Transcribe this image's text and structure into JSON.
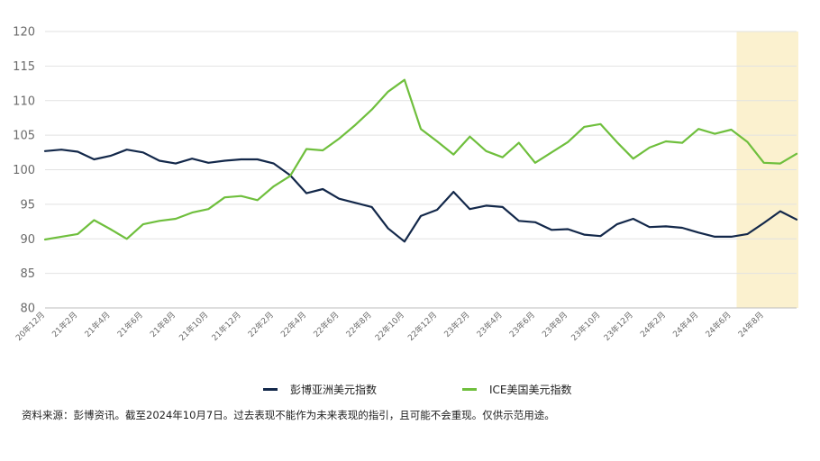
{
  "chart_data": {
    "type": "line",
    "x": [
      "2020-12",
      "2021-01",
      "2021-02",
      "2021-03",
      "2021-04",
      "2021-05",
      "2021-06",
      "2021-07",
      "2021-08",
      "2021-09",
      "2021-10",
      "2021-11",
      "2021-12",
      "2022-01",
      "2022-02",
      "2022-03",
      "2022-04",
      "2022-05",
      "2022-06",
      "2022-07",
      "2022-08",
      "2022-09",
      "2022-10",
      "2022-11",
      "2022-12",
      "2023-01",
      "2023-02",
      "2023-03",
      "2023-04",
      "2023-05",
      "2023-06",
      "2023-07",
      "2023-08",
      "2023-09",
      "2023-10",
      "2023-11",
      "2023-12",
      "2024-01",
      "2024-02",
      "2024-03",
      "2024-04",
      "2024-05",
      "2024-06",
      "2024-07",
      "2024-08",
      "2024-09",
      "2024-10"
    ],
    "tick_labels": [
      "20年12月",
      "21年2月",
      "21年4月",
      "21年6月",
      "21年8月",
      "21年10月",
      "21年12月",
      "22年2月",
      "22年4月",
      "22年6月",
      "22年8月",
      "22年10月",
      "22年12月",
      "23年2月",
      "23年4月",
      "23年6月",
      "23年8月",
      "23年10月",
      "23年12月",
      "24年2月",
      "24年4月",
      "24年6月",
      "24年8月"
    ],
    "ylim": [
      80,
      120
    ],
    "yticks": [
      80,
      85,
      90,
      95,
      100,
      105,
      110,
      115,
      120
    ],
    "grid": true,
    "legend": "bottom",
    "highlight": {
      "from": "2024-06",
      "to": "2024-10",
      "color": "#fbf1cf"
    },
    "series": [
      {
        "name": "彭博亚洲美元指数",
        "color": "#13284a",
        "values": [
          102.7,
          102.9,
          102.6,
          101.5,
          102.0,
          102.9,
          102.5,
          101.3,
          100.9,
          101.6,
          101.0,
          101.3,
          101.5,
          101.5,
          100.9,
          99.2,
          96.6,
          97.2,
          95.8,
          95.2,
          94.6,
          91.5,
          89.6,
          93.3,
          94.2,
          96.8,
          94.3,
          94.8,
          94.6,
          92.6,
          92.4,
          91.3,
          91.4,
          90.6,
          90.4,
          92.1,
          92.9,
          91.7,
          91.8,
          91.6,
          90.9,
          90.3,
          90.3,
          90.7,
          92.3,
          94.0,
          92.8
        ]
      },
      {
        "name": "ICE美国美元指数",
        "color": "#6fbf3d",
        "values": [
          89.9,
          90.3,
          90.7,
          92.7,
          91.4,
          90.0,
          92.1,
          92.6,
          92.9,
          93.8,
          94.3,
          96.0,
          96.2,
          95.6,
          97.6,
          99.1,
          103.0,
          102.8,
          104.5,
          106.5,
          108.7,
          111.3,
          113.0,
          105.9,
          104.1,
          102.2,
          104.8,
          102.7,
          101.8,
          103.9,
          101.0,
          102.5,
          104.0,
          106.2,
          106.6,
          104.0,
          101.6,
          103.2,
          104.1,
          103.9,
          105.9,
          105.2,
          105.8,
          104.0,
          101.0,
          100.9,
          102.3
        ]
      }
    ]
  },
  "source_note": "资料来源：彭博资讯。截至2024年10月7日。过去表现不能作为未来表现的指引，且可能不会重现。仅供示范用途。"
}
